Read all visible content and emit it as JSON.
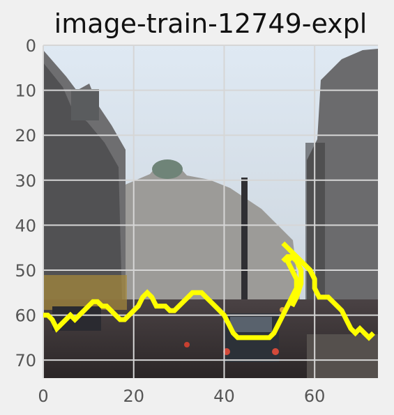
{
  "chart_data": {
    "type": "image-overlay",
    "title": "image-train-12749-expl",
    "x_ticks": [
      "0",
      "20",
      "40",
      "60"
    ],
    "x_tick_values": [
      0,
      20,
      40,
      60
    ],
    "y_ticks": [
      "0",
      "10",
      "20",
      "30",
      "40",
      "50",
      "60",
      "70"
    ],
    "y_tick_values": [
      0,
      10,
      20,
      30,
      40,
      50,
      60,
      70
    ],
    "xlim": [
      0,
      74
    ],
    "ylim": [
      74,
      0
    ],
    "y_axis_inverted": true,
    "grid": true,
    "overlay_color": "#ffff00",
    "explanation_outline": [
      [
        0,
        60
      ],
      [
        1,
        60
      ],
      [
        2,
        61
      ],
      [
        3,
        63
      ],
      [
        4,
        62
      ],
      [
        5,
        61
      ],
      [
        6,
        60
      ],
      [
        7,
        61
      ],
      [
        8,
        60
      ],
      [
        9,
        59
      ],
      [
        10,
        58
      ],
      [
        11,
        57
      ],
      [
        12,
        57
      ],
      [
        13,
        58
      ],
      [
        14,
        58
      ],
      [
        15,
        59
      ],
      [
        16,
        60
      ],
      [
        17,
        61
      ],
      [
        18,
        61
      ],
      [
        19,
        60
      ],
      [
        20,
        59
      ],
      [
        21,
        58
      ],
      [
        22,
        56
      ],
      [
        23,
        55
      ],
      [
        24,
        56
      ],
      [
        25,
        58
      ],
      [
        26,
        58
      ],
      [
        27,
        58
      ],
      [
        28,
        59
      ],
      [
        29,
        59
      ],
      [
        30,
        58
      ],
      [
        31,
        57
      ],
      [
        32,
        56
      ],
      [
        33,
        55
      ],
      [
        34,
        55
      ],
      [
        35,
        55
      ],
      [
        36,
        56
      ],
      [
        37,
        57
      ],
      [
        38,
        58
      ],
      [
        39,
        59
      ],
      [
        40,
        60
      ],
      [
        41,
        62
      ],
      [
        42,
        64
      ],
      [
        43,
        65
      ],
      [
        44,
        65
      ],
      [
        45,
        65
      ],
      [
        46,
        65
      ],
      [
        47,
        65
      ],
      [
        48,
        65
      ],
      [
        49,
        65
      ],
      [
        50,
        65
      ],
      [
        51,
        64
      ],
      [
        52,
        62
      ],
      [
        53,
        60
      ],
      [
        54,
        58
      ],
      [
        55,
        56
      ],
      [
        56,
        54
      ],
      [
        56,
        52
      ],
      [
        55,
        50
      ],
      [
        54,
        48
      ],
      [
        55,
        47
      ],
      [
        56,
        47
      ],
      [
        57,
        48
      ],
      [
        58,
        49
      ],
      [
        59,
        50
      ],
      [
        60,
        52
      ],
      [
        60,
        54
      ],
      [
        61,
        56
      ],
      [
        62,
        56
      ],
      [
        63,
        56
      ],
      [
        64,
        57
      ],
      [
        65,
        58
      ],
      [
        66,
        59
      ],
      [
        67,
        61
      ],
      [
        68,
        63
      ],
      [
        69,
        64
      ],
      [
        70,
        63
      ],
      [
        71,
        64
      ],
      [
        72,
        65
      ],
      [
        73,
        64
      ]
    ],
    "explanation_outline_upper": [
      [
        53,
        44
      ],
      [
        54,
        45
      ],
      [
        55,
        46
      ],
      [
        56,
        47
      ],
      [
        57,
        48
      ],
      [
        58,
        49
      ],
      [
        59,
        50
      ],
      [
        60,
        52
      ]
    ],
    "explanation_outline_left": [
      [
        53,
        48
      ],
      [
        54,
        47
      ],
      [
        55,
        47
      ],
      [
        56,
        48
      ],
      [
        57,
        50
      ],
      [
        57,
        53
      ],
      [
        56,
        56
      ],
      [
        55,
        58
      ]
    ]
  }
}
